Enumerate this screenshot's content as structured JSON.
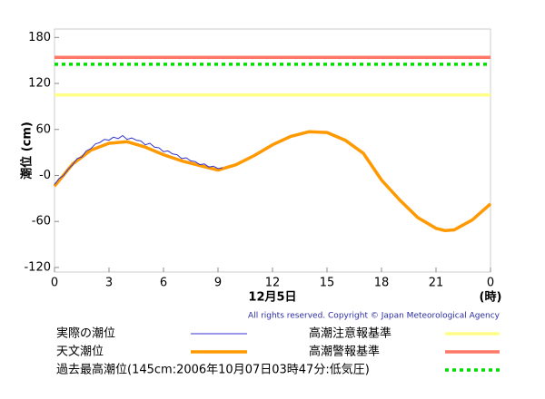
{
  "chart_data": {
    "type": "line",
    "y_label": "潮位 (cm)",
    "x_label": "12月5日",
    "x_unit": "(時)",
    "copyright": "All rights reserved. Copyright © Japan Meteorological Agency",
    "xlim": [
      0,
      24
    ],
    "xticks": [
      0,
      3,
      6,
      9,
      12,
      15,
      18,
      21,
      {
        "value": 24,
        "label": "0"
      }
    ],
    "ylim": [
      -126,
      191
    ],
    "yticks": [
      180,
      120,
      60,
      {
        "value": 0,
        "label": "-0"
      },
      -60,
      -120
    ],
    "series": [
      {
        "name": "実際の潮位",
        "color": "#3333cc",
        "width": 1,
        "x": [
          0,
          0.25,
          0.5,
          0.75,
          1,
          1.25,
          1.5,
          1.75,
          2,
          2.25,
          2.5,
          2.75,
          3,
          3.25,
          3.5,
          3.75,
          4,
          4.25,
          4.5,
          4.75,
          5,
          5.25,
          5.5,
          5.75,
          6,
          6.25,
          6.5,
          6.75,
          7,
          7.25,
          7.5,
          7.75,
          8,
          8.25,
          8.5,
          8.75,
          9,
          9.25
        ],
        "values": [
          -12,
          -4,
          0,
          8,
          14,
          22,
          24,
          32,
          35,
          41,
          43,
          47,
          46,
          50,
          48,
          52,
          47,
          49,
          46,
          45,
          40,
          42,
          37,
          36,
          31,
          32,
          28,
          27,
          22,
          23,
          19,
          18,
          14,
          15,
          11,
          12,
          9,
          10
        ]
      },
      {
        "name": "天文潮位",
        "color": "#ff9900",
        "width": 3.5,
        "x": [
          0,
          1,
          2,
          3,
          4,
          5,
          6,
          7,
          8,
          9,
          10,
          11,
          12,
          13,
          14,
          15,
          16,
          17,
          18,
          19,
          20,
          21,
          21.5,
          22,
          23,
          24
        ],
        "values": [
          -14,
          15,
          33,
          42,
          44,
          37,
          27,
          19,
          13,
          7,
          14,
          26,
          40,
          51,
          57,
          56,
          46,
          29,
          -6,
          -32,
          -55,
          -69,
          -72,
          -71,
          -58,
          -37
        ]
      }
    ],
    "reference_lines": [
      {
        "name": "高潮注意報基準",
        "color": "#ffff88",
        "value": 105,
        "dashed": false
      },
      {
        "name": "高潮警報基準",
        "color": "#ff7766",
        "value": 154,
        "dashed": false
      },
      {
        "name": "過去最高潮位(145cm:2006年10月07日03時47分:低気圧)",
        "color": "#00dd00",
        "value": 145,
        "dashed": true
      }
    ]
  }
}
